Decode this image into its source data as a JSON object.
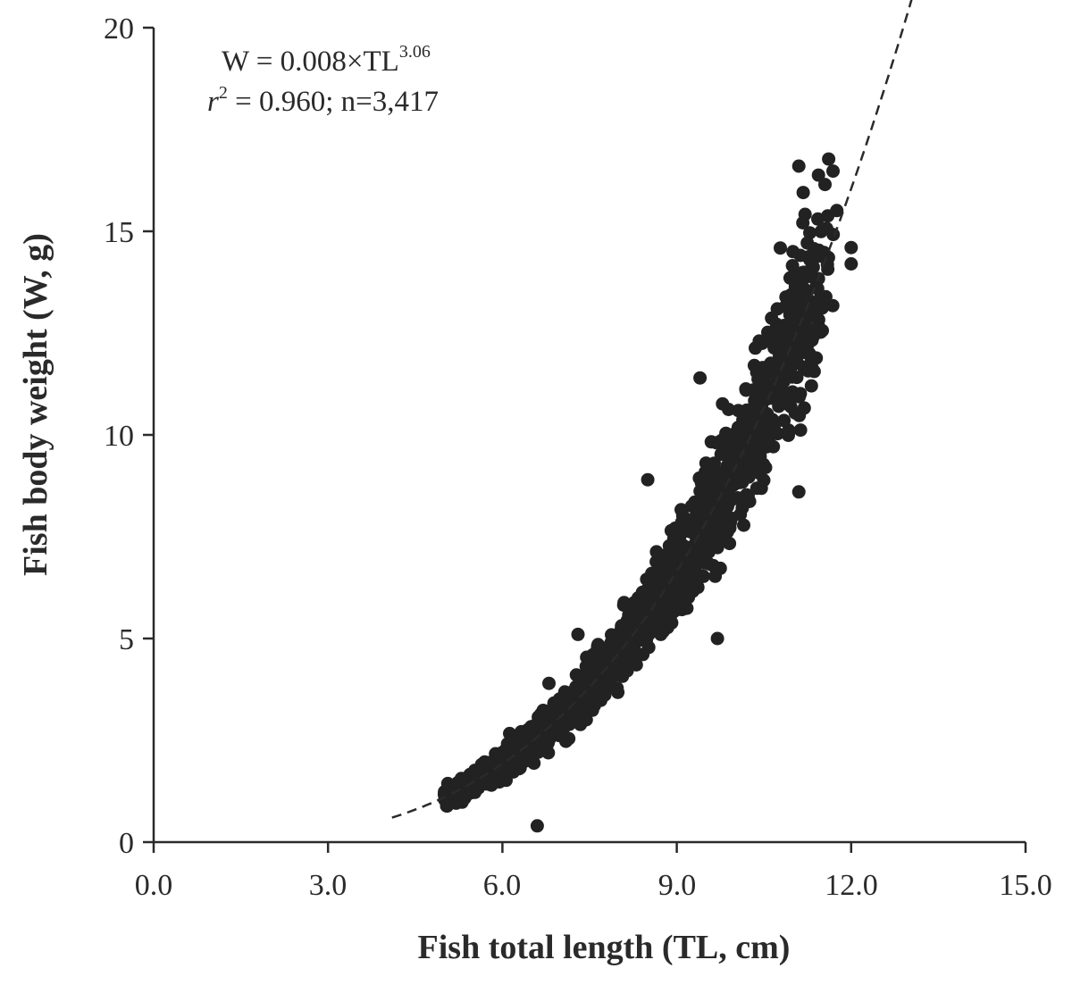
{
  "chart_data": {
    "type": "scatter",
    "title": "",
    "xlabel": "Fish total length (TL, cm)",
    "ylabel": "Fish body weight (W, g)",
    "xlim": [
      0,
      15
    ],
    "ylim": [
      0,
      20
    ],
    "xticks": [
      "0.0",
      "3.0",
      "6.0",
      "9.0",
      "12.0",
      "15.0"
    ],
    "yticks": [
      "0",
      "5",
      "10",
      "15",
      "20"
    ],
    "grid": false,
    "legend": "none",
    "annotation": {
      "line1_prefix": "W = 0.008×TL",
      "line1_exponent": "3.06",
      "line2_var": "r",
      "line2_exponent": "2",
      "line2_rest": " = 0.960; n=3,417"
    },
    "fit": {
      "equation": "W = 0.008 x TL^3.06",
      "a": 0.008,
      "b": 3.06,
      "style": "dashed",
      "x_range": [
        4.1,
        13.1
      ]
    },
    "point_color": "#222222",
    "points_shown": 3417,
    "outliers": [
      [
        11.1,
        16.6
      ],
      [
        8.5,
        8.9
      ],
      [
        7.3,
        5.1
      ],
      [
        6.6,
        0.4
      ],
      [
        9.4,
        11.4
      ],
      [
        9.7,
        5.0
      ],
      [
        6.8,
        3.9
      ],
      [
        11.0,
        14.5
      ],
      [
        11.4,
        14.5
      ],
      [
        12.0,
        14.6
      ],
      [
        12.0,
        14.2
      ],
      [
        11.1,
        8.6
      ],
      [
        6.0,
        2.2
      ]
    ]
  }
}
